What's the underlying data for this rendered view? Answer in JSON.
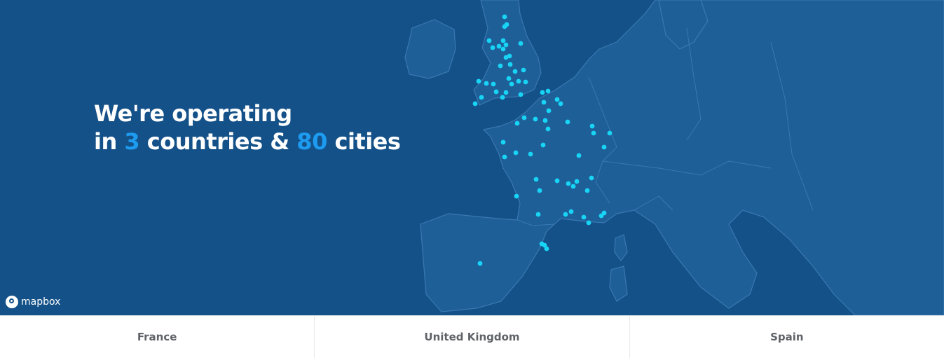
{
  "headline": {
    "line1": "We're operating",
    "line2_prefix": "in",
    "countries": "3",
    "countries_suffix": "countries &",
    "cities": "80",
    "cities_suffix": "cities"
  },
  "attribution": "mapbox",
  "tabs": [
    {
      "label": "France"
    },
    {
      "label": "United Kingdom"
    },
    {
      "label": "Spain"
    }
  ],
  "colors": {
    "sea": "#145188",
    "land": "#1e5f98",
    "border": "#3a78b2",
    "accent": "#1d9bf0",
    "city_dot": "#18d4f5"
  },
  "icons": {
    "attribution_logo": "mapbox-logo-icon",
    "city_marker": "city-dot-icon"
  }
}
